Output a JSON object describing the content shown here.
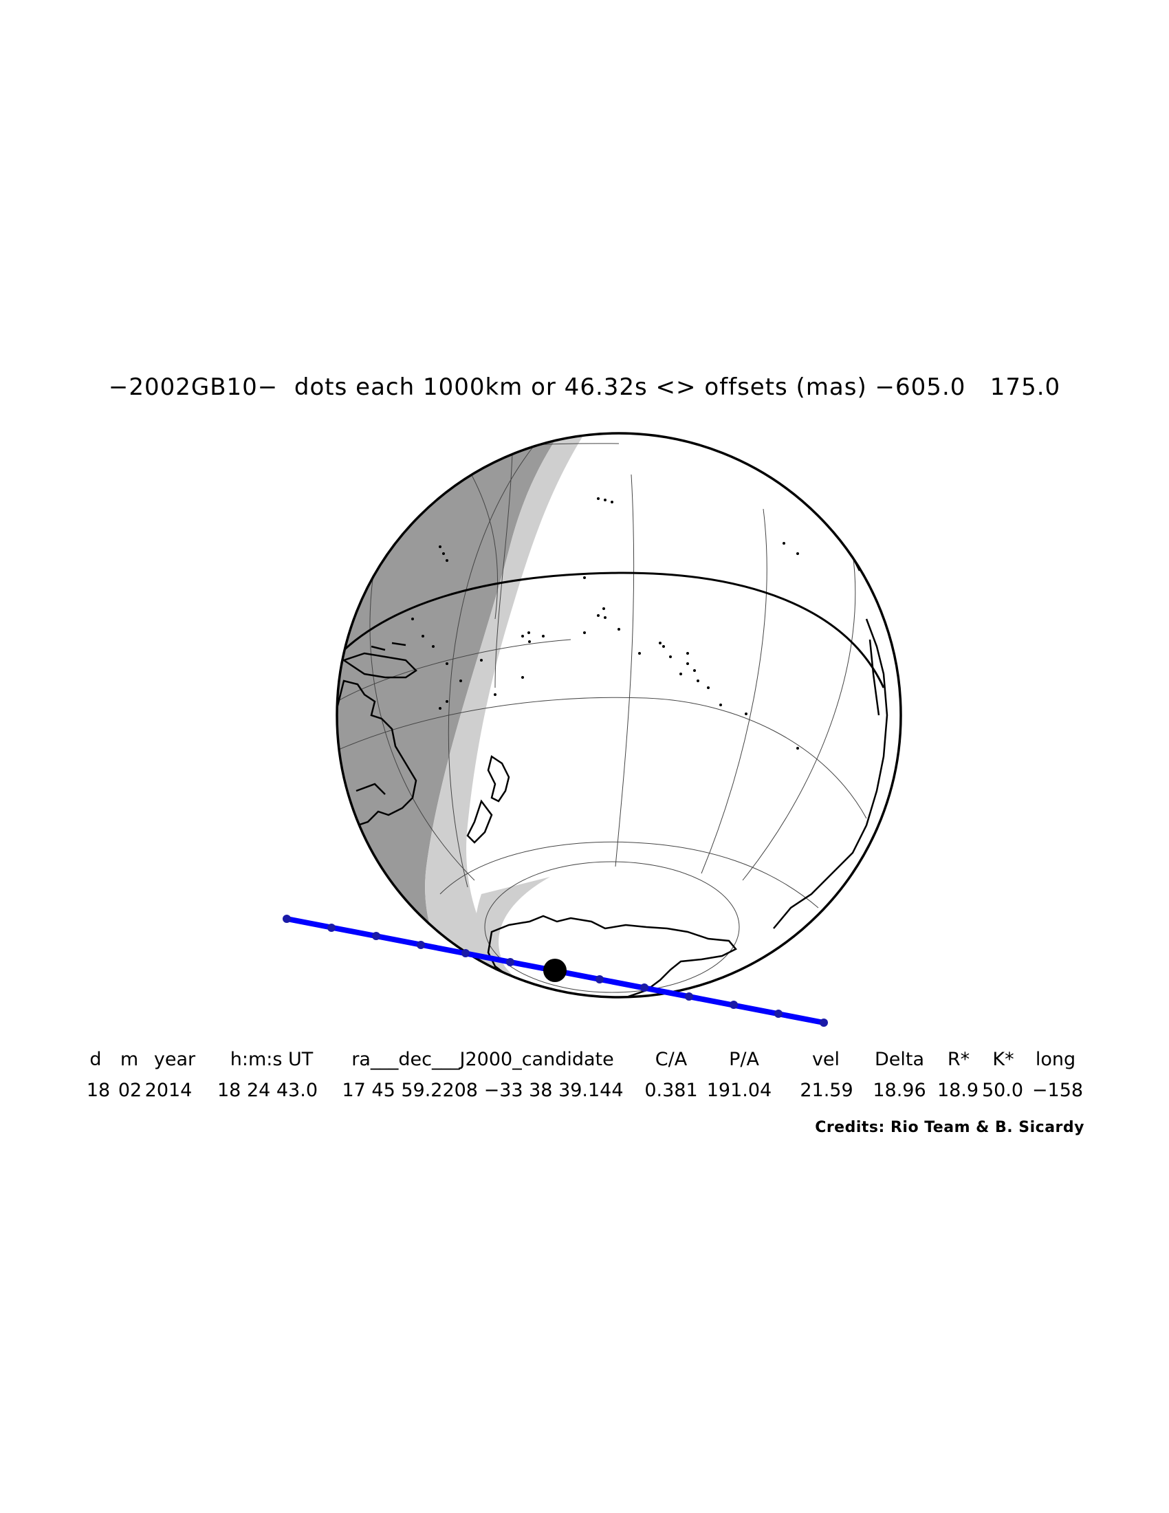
{
  "title": "−2002GB10−  dots each 1000km or 46.32s <> offsets (mas) −605.0   175.0",
  "table": {
    "headers": [
      "d",
      "m",
      "year",
      "h:m:s UT",
      "ra___dec___J2000_candidate",
      "C/A",
      "P/A",
      "vel",
      "Delta",
      "R*",
      "K*",
      "long"
    ],
    "values": [
      "18",
      "02",
      "2014",
      "18 24 43.0",
      "17 45 59.2208 −33 38 39.144",
      "0.381",
      "191.04",
      "21.59",
      "18.96",
      "18.9",
      "50.0",
      "−158"
    ]
  },
  "credits": "Credits: Rio Team & B. Sicardy",
  "colors": {
    "track": "#0000ff",
    "track_dots": "#1a1aa8",
    "night": "#9a9a9a",
    "twilight": "#cfcfcf",
    "day": "#ffffff",
    "coast": "#000000"
  },
  "icons": {
    "globe": "earth-globe-icon",
    "shadow": "occultation-shadow-icon"
  }
}
